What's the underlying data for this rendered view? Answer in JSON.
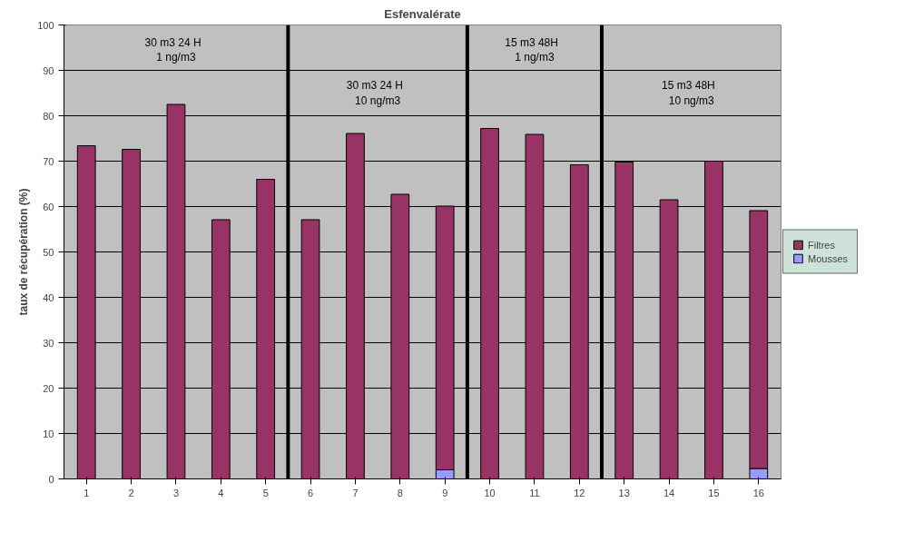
{
  "chart_data": {
    "type": "bar",
    "title": "Esfenvalérate",
    "ylabel": "taux de récupération (%)",
    "stacked": true,
    "x": [
      1,
      2,
      3,
      4,
      5,
      6,
      7,
      8,
      9,
      10,
      11,
      12,
      13,
      14,
      15,
      16
    ],
    "xlim": [
      0.5,
      16.5
    ],
    "xticks": [
      1,
      2,
      3,
      4,
      5,
      6,
      7,
      8,
      9,
      10,
      11,
      12,
      13,
      14,
      15,
      16
    ],
    "ylim": [
      0,
      100
    ],
    "yticks": [
      0,
      10,
      20,
      30,
      40,
      50,
      60,
      70,
      80,
      90,
      100
    ],
    "series": [
      {
        "name": "Mousses",
        "color": "#9999ff",
        "values": [
          0,
          0,
          0,
          0,
          0,
          0,
          0,
          0,
          2.0,
          0,
          0,
          0,
          0,
          0,
          0,
          2.3
        ]
      },
      {
        "name": "Filtres",
        "color": "#993366",
        "values": [
          73.4,
          72.6,
          82.5,
          57.1,
          66.0,
          57.1,
          76.1,
          62.7,
          58.1,
          77.2,
          75.9,
          69.2,
          69.8,
          61.5,
          70.0,
          56.8
        ]
      }
    ],
    "ref_lines": [
      {
        "axis": "x",
        "value": 5.5,
        "color": "#000000"
      },
      {
        "axis": "x",
        "value": 9.5,
        "color": "#000000"
      },
      {
        "axis": "x",
        "value": 12.5,
        "color": "#000000"
      }
    ],
    "annotations": [
      "30 m3   24 H\n1 ng/m3",
      "30 m3   24 H\n10 ng/m3",
      "15 m3   48H\n1 ng/m3",
      "15 m3   48H\n10 ng/m3"
    ],
    "grid": "y",
    "legend": "right"
  }
}
